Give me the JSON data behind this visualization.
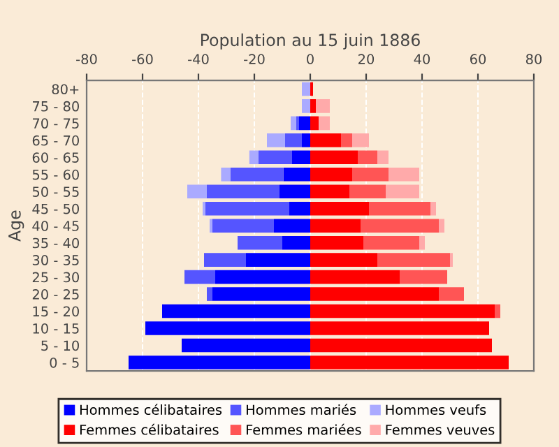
{
  "chart_data": {
    "type": "bar",
    "orientation": "horizontal",
    "stacked": true,
    "xlabel": "Population au 15 juin 1886",
    "ylabel": "Age",
    "categories": [
      "80+",
      "75 - 80",
      "70 - 75",
      "65 - 70",
      "60 - 65",
      "55 - 60",
      "50 - 55",
      "45 - 50",
      "40 - 45",
      "35 - 40",
      "30 - 35",
      "25 - 30",
      "20 - 25",
      "15 - 20",
      "10 - 15",
      "5 - 10",
      "0 - 5"
    ],
    "series": [
      {
        "name": "Hommes célibataires",
        "color": "#0000ff",
        "values": [
          0,
          0,
          -4,
          -3,
          -6.5,
          -9.6,
          -11,
          -7.5,
          -13,
          -10,
          -23,
          -34,
          -35,
          -53,
          -59,
          -46,
          -65
        ]
      },
      {
        "name": "Hommes mariés",
        "color": "#5555ff",
        "values": [
          0,
          0,
          -1,
          -6,
          -12,
          -19,
          -26,
          -30,
          -22,
          -16,
          -15,
          -11,
          -2,
          0,
          0,
          0,
          0
        ]
      },
      {
        "name": "Hommes veufs",
        "color": "#aaaaff",
        "values": [
          -3,
          -3,
          -2,
          -6.5,
          -3.3,
          -3.3,
          -7,
          -1,
          -1,
          0,
          0,
          0,
          0,
          0,
          0,
          0,
          0
        ]
      },
      {
        "name": "Femmes célibataires",
        "color": "#ff0000",
        "values": [
          1,
          2,
          3,
          11,
          17,
          15,
          14,
          21,
          18,
          19,
          24,
          32,
          46,
          66,
          64,
          65,
          71
        ]
      },
      {
        "name": "Femmes mariées",
        "color": "#ff5555",
        "values": [
          0,
          0,
          0,
          4,
          7,
          13,
          13,
          22,
          28,
          20,
          26,
          17,
          9,
          2,
          0,
          0,
          0
        ]
      },
      {
        "name": "Femmes veuves",
        "color": "#ffaaaa",
        "values": [
          0,
          5,
          4,
          6,
          4,
          11,
          12,
          2,
          2,
          2,
          1,
          0,
          0,
          0,
          0,
          0,
          0
        ]
      }
    ],
    "xlim": [
      -80,
      80
    ],
    "xticks": [
      -80,
      -60,
      -40,
      -20,
      0,
      20,
      40,
      60,
      80
    ],
    "grid": "x",
    "legend": "bottom"
  }
}
